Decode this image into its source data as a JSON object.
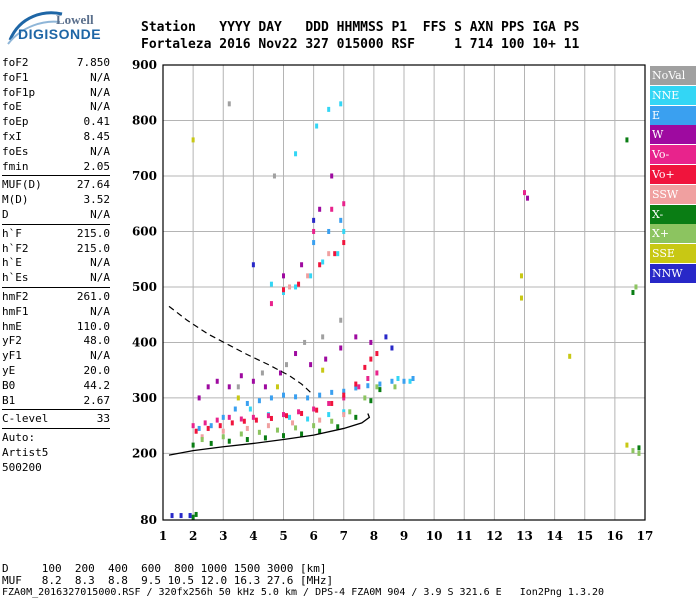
{
  "logo": {
    "line1": "Lowell",
    "line2": "DIGISONDE"
  },
  "header": {
    "row1": "Station   YYYY DAY   DDD HHMMSS P1  FFS S AXN PPS IGA PS",
    "row2": "Fortaleza 2016 Nov22 327 015000 RSF     1 714 100 10+ 11"
  },
  "scaled": [
    {
      "name": "foF2",
      "value": "7.850"
    },
    {
      "name": "foF1",
      "value": "N/A"
    },
    {
      "name": "foF1p",
      "value": "N/A"
    },
    {
      "name": "foE",
      "value": "N/A"
    },
    {
      "name": "foEp",
      "value": "0.41"
    },
    {
      "name": "fxI",
      "value": "8.45"
    },
    {
      "name": "foEs",
      "value": "N/A"
    },
    {
      "name": "fmin",
      "value": "2.05"
    },
    {
      "name": "MUF(D)",
      "value": "27.64"
    },
    {
      "name": "M(D)",
      "value": "3.52"
    },
    {
      "name": "D",
      "value": "N/A"
    },
    {
      "name": "h`F",
      "value": "215.0"
    },
    {
      "name": "h`F2",
      "value": "215.0"
    },
    {
      "name": "h`E",
      "value": "N/A"
    },
    {
      "name": "h`Es",
      "value": "N/A"
    },
    {
      "name": "hmF2",
      "value": "261.0"
    },
    {
      "name": "hmF1",
      "value": "N/A"
    },
    {
      "name": "hmE",
      "value": "110.0"
    },
    {
      "name": "yF2",
      "value": "48.0"
    },
    {
      "name": "yF1",
      "value": "N/A"
    },
    {
      "name": "yE",
      "value": "20.0"
    },
    {
      "name": "B0",
      "value": "44.2"
    },
    {
      "name": "B1",
      "value": "2.67"
    },
    {
      "name": "C-level",
      "value": "33"
    }
  ],
  "autoscaler": {
    "line1": "Auto:",
    "line2": "Artist5",
    "line3": "500200"
  },
  "legend": [
    {
      "label": "NoVal",
      "color": "#a0a0a0"
    },
    {
      "label": "NNE",
      "color": "#33d6f5"
    },
    {
      "label": "E",
      "color": "#3aa0f0"
    },
    {
      "label": "W",
      "color": "#9e0aa0"
    },
    {
      "label": "Vo-",
      "color": "#e8238c"
    },
    {
      "label": "Vo+",
      "color": "#f0143c"
    },
    {
      "label": "SSW",
      "color": "#f0a0a0"
    },
    {
      "label": "X-",
      "color": "#0a7d14"
    },
    {
      "label": "X+",
      "color": "#8cc460"
    },
    {
      "label": "SSE",
      "color": "#c8c814"
    },
    {
      "label": "NNW",
      "color": "#2828c8"
    }
  ],
  "footer": {
    "line1": "D     100  200  400  600  800 1000 1500 3000 [km]",
    "line2": "MUF   8.2  8.3  8.8  9.5 10.5 12.0 16.3 27.6 [MHz]",
    "line3": "FZA0M_2016327015000.RSF / 320fx256h 50 kHz 5.0 km / DPS-4 FZA0M 904 / 3.9 S 321.6 E   Ion2Png 1.3.20"
  },
  "chart_data": {
    "type": "scatter",
    "title": "",
    "xlabel": "",
    "ylabel": "",
    "x_unit": "MHz",
    "y_unit": "km",
    "xlim": [
      1,
      17
    ],
    "ylim": [
      80,
      900
    ],
    "x_ticks": [
      1,
      2,
      3,
      4,
      5,
      6,
      7,
      8,
      9,
      10,
      11,
      12,
      13,
      14,
      15,
      16,
      17
    ],
    "y_ticks": [
      80,
      200,
      300,
      400,
      500,
      600,
      700,
      800,
      900
    ],
    "grid": true,
    "legend_position": "right",
    "series": [
      {
        "name": "NNE",
        "color": "#33d6f5",
        "points": [
          [
            4.6,
            505
          ],
          [
            5.0,
            490
          ],
          [
            5.4,
            500
          ],
          [
            5.9,
            520
          ],
          [
            6.3,
            545
          ],
          [
            6.8,
            560
          ],
          [
            7.0,
            600
          ],
          [
            5.4,
            740
          ],
          [
            6.1,
            790
          ],
          [
            6.5,
            820
          ],
          [
            6.9,
            830
          ],
          [
            3.9,
            280
          ],
          [
            4.5,
            270
          ],
          [
            5.2,
            265
          ],
          [
            5.8,
            262
          ],
          [
            6.5,
            270
          ],
          [
            7.0,
            275
          ],
          [
            8.8,
            335
          ],
          [
            9.2,
            330
          ]
        ]
      },
      {
        "name": "E",
        "color": "#3aa0f0",
        "points": [
          [
            2.2,
            245
          ],
          [
            2.6,
            250
          ],
          [
            3.0,
            265
          ],
          [
            3.4,
            280
          ],
          [
            3.8,
            290
          ],
          [
            4.2,
            295
          ],
          [
            4.6,
            300
          ],
          [
            5.0,
            305
          ],
          [
            5.4,
            302
          ],
          [
            5.8,
            300
          ],
          [
            6.2,
            305
          ],
          [
            6.6,
            310
          ],
          [
            7.0,
            312
          ],
          [
            7.4,
            318
          ],
          [
            7.8,
            322
          ],
          [
            8.2,
            325
          ],
          [
            8.6,
            330
          ],
          [
            9.0,
            330
          ],
          [
            9.3,
            335
          ],
          [
            6.0,
            580
          ],
          [
            6.5,
            600
          ],
          [
            6.9,
            620
          ],
          [
            1.9,
            88
          ]
        ]
      },
      {
        "name": "W",
        "color": "#9e0aa0",
        "points": [
          [
            2.2,
            300
          ],
          [
            2.5,
            320
          ],
          [
            2.8,
            330
          ],
          [
            3.2,
            320
          ],
          [
            3.6,
            340
          ],
          [
            4.0,
            330
          ],
          [
            4.4,
            320
          ],
          [
            4.9,
            345
          ],
          [
            5.4,
            380
          ],
          [
            5.9,
            360
          ],
          [
            6.4,
            370
          ],
          [
            6.9,
            390
          ],
          [
            7.4,
            410
          ],
          [
            7.9,
            400
          ],
          [
            13.1,
            660
          ],
          [
            5.0,
            520
          ],
          [
            5.6,
            540
          ],
          [
            6.2,
            640
          ],
          [
            6.6,
            700
          ]
        ]
      },
      {
        "name": "Vo-",
        "color": "#e8238c",
        "points": [
          [
            2.0,
            250
          ],
          [
            2.4,
            255
          ],
          [
            2.8,
            260
          ],
          [
            3.2,
            265
          ],
          [
            3.6,
            262
          ],
          [
            4.0,
            265
          ],
          [
            4.5,
            268
          ],
          [
            5.0,
            270
          ],
          [
            5.5,
            275
          ],
          [
            6.0,
            280
          ],
          [
            6.5,
            290
          ],
          [
            7.0,
            300
          ],
          [
            7.5,
            320
          ],
          [
            7.8,
            335
          ],
          [
            8.1,
            345
          ],
          [
            6.0,
            600
          ],
          [
            6.6,
            640
          ],
          [
            7.0,
            650
          ],
          [
            13.0,
            670
          ],
          [
            4.6,
            470
          ]
        ]
      },
      {
        "name": "Vo+",
        "color": "#f0143c",
        "points": [
          [
            2.1,
            240
          ],
          [
            2.5,
            245
          ],
          [
            2.9,
            250
          ],
          [
            3.3,
            255
          ],
          [
            3.7,
            258
          ],
          [
            4.1,
            260
          ],
          [
            4.6,
            263
          ],
          [
            5.1,
            268
          ],
          [
            5.6,
            272
          ],
          [
            6.1,
            278
          ],
          [
            6.6,
            290
          ],
          [
            7.0,
            305
          ],
          [
            7.4,
            325
          ],
          [
            7.7,
            355
          ],
          [
            7.9,
            370
          ],
          [
            8.1,
            380
          ],
          [
            5.0,
            495
          ],
          [
            5.5,
            505
          ],
          [
            6.2,
            540
          ],
          [
            6.7,
            560
          ],
          [
            7.0,
            580
          ]
        ]
      },
      {
        "name": "SSW",
        "color": "#f0a0a0",
        "points": [
          [
            2.3,
            230
          ],
          [
            3.0,
            240
          ],
          [
            3.8,
            245
          ],
          [
            4.5,
            250
          ],
          [
            5.3,
            255
          ],
          [
            6.2,
            260
          ],
          [
            7.0,
            270
          ],
          [
            5.2,
            500
          ],
          [
            5.8,
            520
          ],
          [
            6.5,
            560
          ]
        ]
      },
      {
        "name": "X-",
        "color": "#0a7d14",
        "points": [
          [
            2.0,
            215
          ],
          [
            2.6,
            218
          ],
          [
            3.2,
            222
          ],
          [
            3.8,
            225
          ],
          [
            4.4,
            228
          ],
          [
            5.0,
            232
          ],
          [
            5.6,
            235
          ],
          [
            6.2,
            240
          ],
          [
            6.8,
            248
          ],
          [
            7.4,
            265
          ],
          [
            7.9,
            295
          ],
          [
            8.2,
            315
          ],
          [
            16.4,
            765
          ],
          [
            16.6,
            490
          ],
          [
            16.8,
            210
          ],
          [
            2.0,
            85
          ],
          [
            2.1,
            90
          ]
        ]
      },
      {
        "name": "X+",
        "color": "#8cc460",
        "points": [
          [
            2.3,
            225
          ],
          [
            3.0,
            230
          ],
          [
            3.6,
            235
          ],
          [
            4.2,
            238
          ],
          [
            4.8,
            242
          ],
          [
            5.4,
            246
          ],
          [
            6.0,
            250
          ],
          [
            6.6,
            258
          ],
          [
            7.2,
            275
          ],
          [
            7.7,
            300
          ],
          [
            8.1,
            320
          ],
          [
            16.7,
            500
          ],
          [
            16.6,
            205
          ],
          [
            16.8,
            200
          ],
          [
            8.7,
            320
          ]
        ]
      },
      {
        "name": "SSE",
        "color": "#c8c814",
        "points": [
          [
            2.0,
            765
          ],
          [
            12.9,
            480
          ],
          [
            12.9,
            520
          ],
          [
            14.5,
            375
          ],
          [
            16.4,
            215
          ],
          [
            3.5,
            300
          ],
          [
            4.8,
            320
          ],
          [
            6.3,
            350
          ]
        ]
      },
      {
        "name": "NNW",
        "color": "#2828c8",
        "points": [
          [
            1.3,
            88
          ],
          [
            1.6,
            88
          ],
          [
            1.9,
            88
          ],
          [
            4.0,
            540
          ],
          [
            6.0,
            620
          ],
          [
            8.4,
            410
          ],
          [
            8.6,
            390
          ]
        ]
      },
      {
        "name": "NoVal",
        "color": "#a0a0a0",
        "points": [
          [
            3.5,
            320
          ],
          [
            4.3,
            345
          ],
          [
            5.1,
            360
          ],
          [
            5.7,
            400
          ],
          [
            6.3,
            410
          ],
          [
            6.9,
            440
          ],
          [
            3.2,
            830
          ],
          [
            4.7,
            700
          ]
        ]
      }
    ]
  }
}
